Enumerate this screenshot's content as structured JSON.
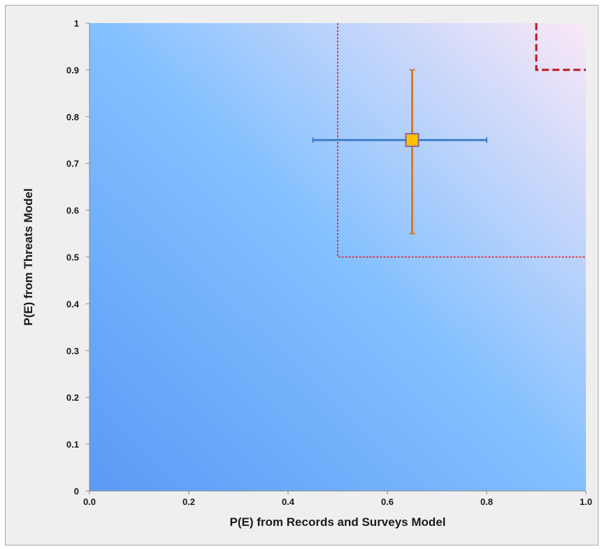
{
  "chart_data": {
    "type": "scatter",
    "title": "",
    "xlabel": "P(E) from Records and Surveys Model",
    "ylabel": "P(E) from Threats Model",
    "xlim": [
      0.0,
      1.0
    ],
    "ylim": [
      0,
      1
    ],
    "x_ticks": [
      "0.0",
      "0.2",
      "0.4",
      "0.6",
      "0.8",
      "1.0"
    ],
    "x_tick_values": [
      0.0,
      0.2,
      0.4,
      0.6,
      0.8,
      1.0
    ],
    "y_ticks": [
      "0",
      "0.1",
      "0.2",
      "0.3",
      "0.4",
      "0.5",
      "0.6",
      "0.7",
      "0.8",
      "0.9",
      "1"
    ],
    "y_tick_values": [
      0,
      0.1,
      0.2,
      0.3,
      0.4,
      0.5,
      0.6,
      0.7,
      0.8,
      0.9,
      1
    ],
    "grid": false,
    "legend": "none",
    "background_gradient": [
      "#5a9af5",
      "#82c0ff",
      "#fbe8f7"
    ],
    "points": [
      {
        "x": 0.65,
        "y": 0.75,
        "x_err": [
          0.45,
          0.8
        ],
        "y_err": [
          0.55,
          0.9
        ],
        "marker_color": "#ffc000",
        "marker_edge": "#8064a2",
        "x_err_color": "#3f7fc6",
        "y_err_color": "#d9782a"
      }
    ],
    "threshold_regions": [
      {
        "x_from": 0.5,
        "y_from": 0.5,
        "style": "dotted",
        "color": "#e8141e"
      },
      {
        "x_from": 0.9,
        "y_from": 0.9,
        "style": "dashed",
        "color": "#c0141c"
      }
    ]
  }
}
